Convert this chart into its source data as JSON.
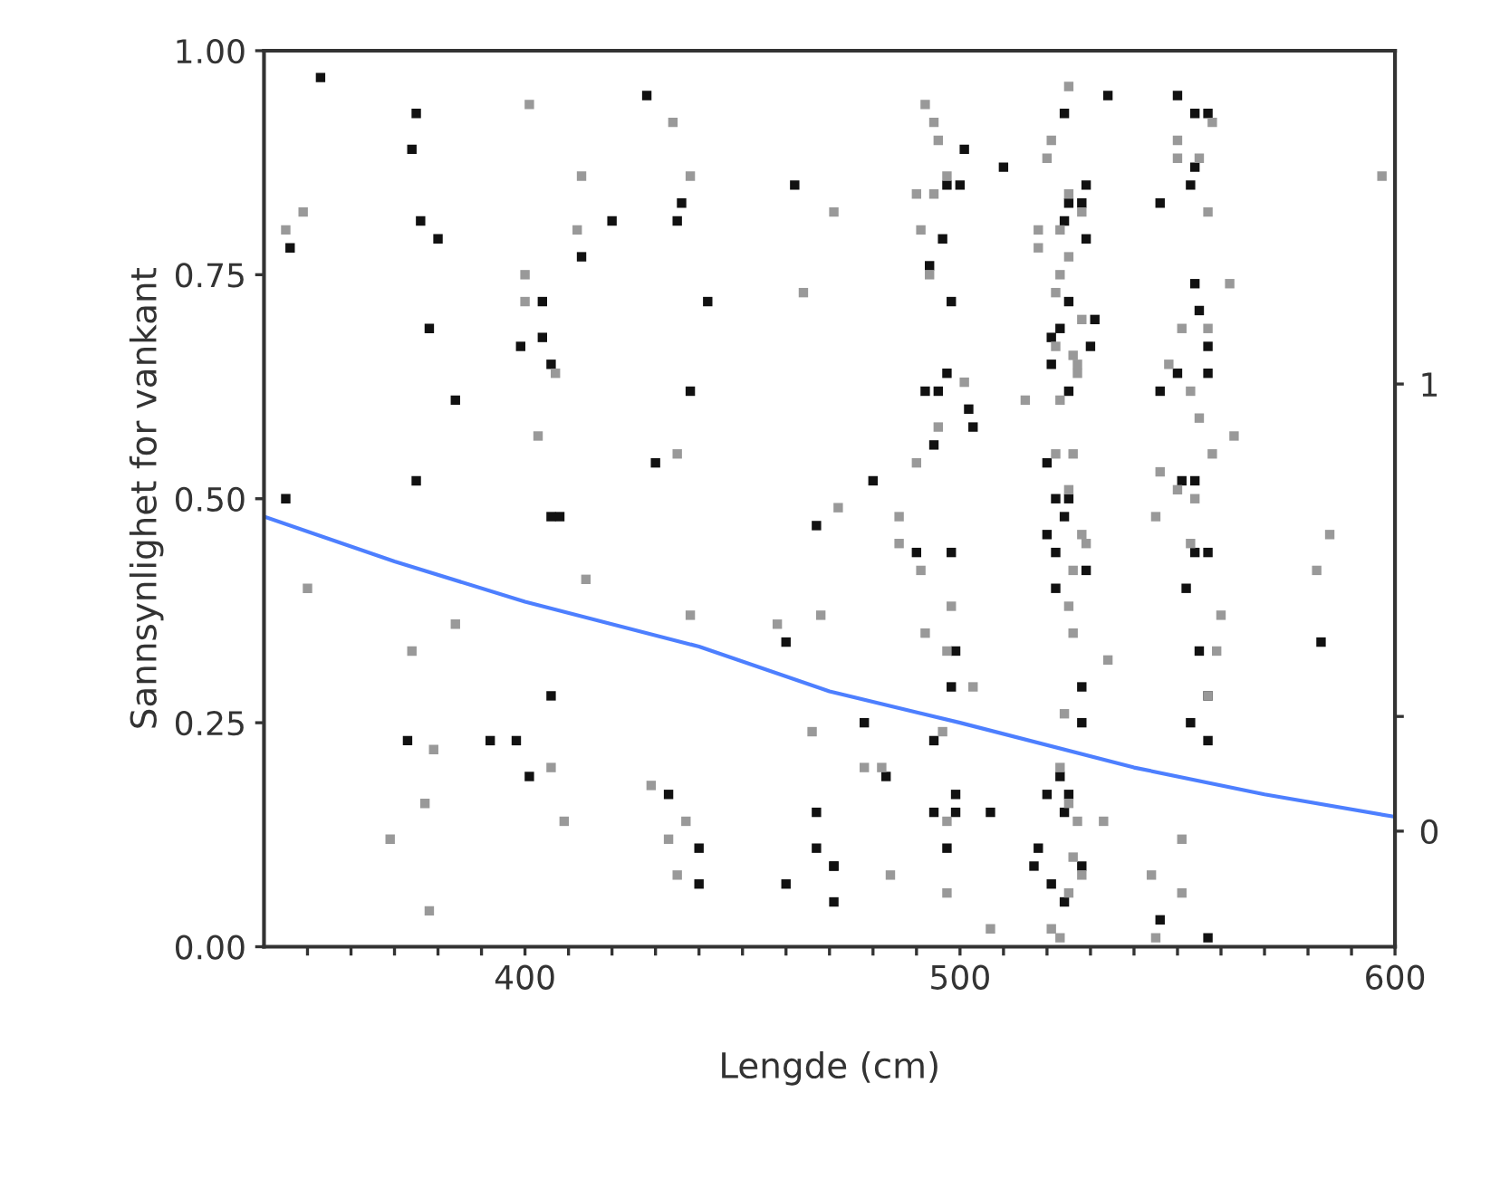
{
  "chart_data": {
    "type": "scatter",
    "xlabel": "Lengde (cm)",
    "ylabel": "Sannsynlighet for vankant",
    "xlim": [
      340,
      600
    ],
    "ylim": [
      0,
      1
    ],
    "xticks": [
      {
        "value": 350,
        "label": null
      },
      {
        "value": 360,
        "label": null
      },
      {
        "value": 370,
        "label": null
      },
      {
        "value": 380,
        "label": null
      },
      {
        "value": 390,
        "label": null
      },
      400,
      {
        "value": 410,
        "label": null
      },
      {
        "value": 420,
        "label": null
      },
      {
        "value": 430,
        "label": null
      },
      {
        "value": 440,
        "label": null
      },
      {
        "value": 450,
        "label": null
      },
      {
        "value": 460,
        "label": null
      },
      {
        "value": 470,
        "label": null
      },
      {
        "value": 480,
        "label": null
      },
      {
        "value": 490,
        "label": null
      },
      500,
      {
        "value": 510,
        "label": null
      },
      {
        "value": 520,
        "label": null
      },
      {
        "value": 530,
        "label": null
      },
      {
        "value": 540,
        "label": null
      },
      {
        "value": 550,
        "label": null
      },
      {
        "value": 560,
        "label": null
      },
      {
        "value": 570,
        "label": null
      },
      {
        "value": 580,
        "label": null
      },
      {
        "value": 590,
        "label": null
      },
      600
    ],
    "yticks": [
      {
        "value": 0,
        "label": "0.00"
      },
      {
        "value": 0.25,
        "label": "0.25"
      },
      {
        "value": 0.5,
        "label": "0.50"
      },
      {
        "value": 0.75,
        "label": "0.75"
      },
      {
        "value": 1,
        "label": "1.00"
      }
    ],
    "y2lim": [
      0,
      1
    ],
    "y2ticks": [
      {
        "value": 0.129,
        "label": "0"
      },
      {
        "value": 0.257,
        "label": null
      },
      {
        "value": 0.628,
        "label": "1"
      }
    ],
    "marker": "square",
    "grid": false,
    "legend": false,
    "series": [
      {
        "color": "#111111",
        "x": [
          353,
          375,
          374,
          376,
          380,
          346,
          428,
          420,
          436,
          435,
          413,
          404,
          442,
          462,
          378,
          404,
          399,
          406,
          384,
          438,
          430,
          375,
          345,
          406,
          408,
          467,
          460,
          406,
          373,
          392,
          398,
          401,
          433,
          440,
          440,
          460,
          467,
          467,
          471,
          534,
          550,
          524,
          554,
          557,
          501,
          510,
          554,
          529,
          553,
          497,
          500,
          525,
          528,
          546,
          524,
          529,
          496,
          493,
          498,
          554,
          525,
          531,
          555,
          521,
          523,
          530,
          557,
          497,
          521,
          550,
          557,
          492,
          495,
          525,
          546,
          502,
          503,
          494,
          520,
          480,
          554,
          551,
          522,
          525,
          490,
          498,
          520,
          524,
          522,
          529,
          554,
          557,
          522,
          552,
          499,
          555,
          583,
          498,
          528,
          478,
          528,
          553,
          557,
          557,
          494,
          483,
          523,
          499,
          520,
          525,
          494,
          499,
          507,
          524,
          471,
          471,
          497,
          518,
          517,
          528,
          521,
          524,
          546,
          557
        ],
        "values": [
          0.97,
          0.93,
          0.89,
          0.81,
          0.79,
          0.78,
          0.95,
          0.81,
          0.83,
          0.81,
          0.77,
          0.72,
          0.72,
          0.85,
          0.69,
          0.68,
          0.67,
          0.65,
          0.61,
          0.62,
          0.54,
          0.52,
          0.5,
          0.48,
          0.48,
          0.47,
          0.34,
          0.28,
          0.23,
          0.23,
          0.23,
          0.19,
          0.17,
          0.11,
          0.07,
          0.07,
          0.15,
          0.11,
          0.09,
          0.95,
          0.95,
          0.93,
          0.93,
          0.93,
          0.89,
          0.87,
          0.87,
          0.85,
          0.85,
          0.85,
          0.85,
          0.83,
          0.83,
          0.83,
          0.81,
          0.79,
          0.79,
          0.76,
          0.72,
          0.74,
          0.72,
          0.7,
          0.71,
          0.68,
          0.69,
          0.67,
          0.67,
          0.64,
          0.65,
          0.64,
          0.64,
          0.62,
          0.62,
          0.62,
          0.62,
          0.6,
          0.58,
          0.56,
          0.54,
          0.52,
          0.52,
          0.52,
          0.5,
          0.5,
          0.44,
          0.44,
          0.46,
          0.48,
          0.44,
          0.42,
          0.44,
          0.44,
          0.4,
          0.4,
          0.33,
          0.33,
          0.34,
          0.29,
          0.29,
          0.25,
          0.25,
          0.25,
          0.28,
          0.23,
          0.23,
          0.19,
          0.19,
          0.17,
          0.17,
          0.17,
          0.15,
          0.15,
          0.15,
          0.15,
          0.09,
          0.05,
          0.11,
          0.11,
          0.09,
          0.09,
          0.07,
          0.05,
          0.03,
          0.01
        ]
      },
      {
        "color": "#999999",
        "x": [
          401,
          434,
          413,
          438,
          349,
          345,
          412,
          400,
          400,
          407,
          464,
          403,
          435,
          471,
          350,
          414,
          438,
          458,
          468,
          384,
          374,
          466,
          379,
          406,
          377,
          369,
          409,
          429,
          433,
          437,
          435,
          378,
          525,
          492,
          494,
          495,
          521,
          520,
          550,
          550,
          558,
          555,
          497,
          490,
          494,
          528,
          525,
          557,
          491,
          518,
          523,
          518,
          525,
          597,
          523,
          493,
          522,
          562,
          528,
          551,
          557,
          522,
          526,
          527,
          548,
          501,
          515,
          523,
          527,
          553,
          555,
          563,
          558,
          495,
          526,
          522,
          490,
          546,
          550,
          554,
          525,
          472,
          486,
          486,
          491,
          528,
          529,
          526,
          525,
          498,
          492,
          497,
          503,
          526,
          534,
          545,
          553,
          560,
          559,
          582,
          585,
          524,
          557,
          496,
          478,
          482,
          523,
          525,
          497,
          527,
          533,
          551,
          526,
          528,
          525,
          544,
          551,
          484,
          497,
          507,
          521,
          523,
          545
        ],
        "values": [
          0.94,
          0.92,
          0.86,
          0.86,
          0.82,
          0.8,
          0.8,
          0.75,
          0.72,
          0.64,
          0.73,
          0.57,
          0.55,
          0.82,
          0.4,
          0.41,
          0.37,
          0.36,
          0.37,
          0.36,
          0.33,
          0.24,
          0.22,
          0.2,
          0.16,
          0.12,
          0.14,
          0.18,
          0.12,
          0.14,
          0.08,
          0.04,
          0.96,
          0.94,
          0.92,
          0.9,
          0.9,
          0.88,
          0.9,
          0.88,
          0.92,
          0.88,
          0.86,
          0.84,
          0.84,
          0.82,
          0.84,
          0.82,
          0.8,
          0.8,
          0.8,
          0.78,
          0.77,
          0.86,
          0.75,
          0.75,
          0.73,
          0.74,
          0.7,
          0.69,
          0.69,
          0.67,
          0.66,
          0.65,
          0.65,
          0.63,
          0.61,
          0.61,
          0.64,
          0.62,
          0.59,
          0.57,
          0.55,
          0.58,
          0.55,
          0.55,
          0.54,
          0.53,
          0.51,
          0.5,
          0.51,
          0.49,
          0.48,
          0.45,
          0.42,
          0.46,
          0.45,
          0.42,
          0.38,
          0.38,
          0.35,
          0.33,
          0.29,
          0.35,
          0.32,
          0.48,
          0.45,
          0.37,
          0.33,
          0.42,
          0.46,
          0.26,
          0.28,
          0.24,
          0.2,
          0.2,
          0.2,
          0.16,
          0.14,
          0.14,
          0.14,
          0.12,
          0.1,
          0.08,
          0.06,
          0.08,
          0.06,
          0.08,
          0.06,
          0.02,
          0.02,
          0.01,
          0.01
        ]
      },
      {
        "type": "line",
        "color": "#4d7fff",
        "marker": "none",
        "line_style": "solid",
        "x": [
          340,
          370,
          400,
          440,
          470,
          500,
          540,
          570,
          600
        ],
        "values": [
          0.48,
          0.43,
          0.385,
          0.335,
          0.285,
          0.25,
          0.2,
          0.17,
          0.145
        ]
      }
    ]
  }
}
